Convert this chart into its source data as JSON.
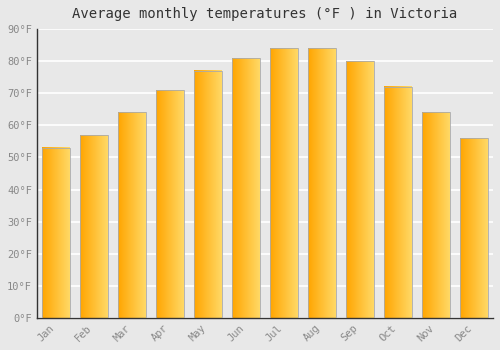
{
  "title": "Average monthly temperatures (°F ) in Victoria",
  "months": [
    "Jan",
    "Feb",
    "Mar",
    "Apr",
    "May",
    "Jun",
    "Jul",
    "Aug",
    "Sep",
    "Oct",
    "Nov",
    "Dec"
  ],
  "values": [
    53,
    57,
    64,
    71,
    77,
    81,
    84,
    84,
    80,
    72,
    64,
    56
  ],
  "bar_color_left": "#FFA500",
  "bar_color_right": "#FFD966",
  "bar_edge_color": "#AAAAAA",
  "background_color": "#E8E8E8",
  "grid_color": "#FFFFFF",
  "ylim": [
    0,
    90
  ],
  "yticks": [
    0,
    10,
    20,
    30,
    40,
    50,
    60,
    70,
    80,
    90
  ],
  "ytick_labels": [
    "0°F",
    "10°F",
    "20°F",
    "30°F",
    "40°F",
    "50°F",
    "60°F",
    "70°F",
    "80°F",
    "90°F"
  ],
  "title_fontsize": 10,
  "tick_fontsize": 7.5,
  "tick_color": "#888888",
  "font_family": "monospace",
  "bar_width": 0.72,
  "figsize": [
    5.0,
    3.5
  ],
  "dpi": 100
}
